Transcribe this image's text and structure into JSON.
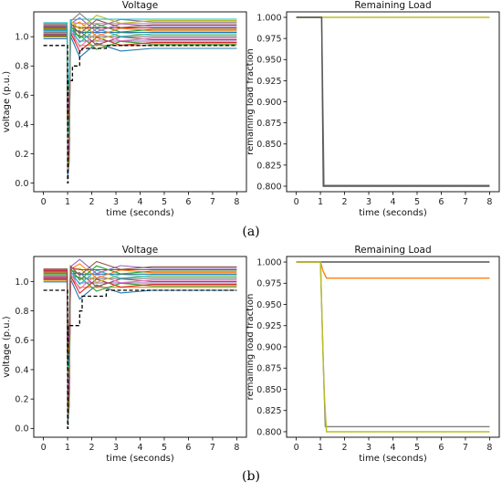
{
  "captions": [
    "(a)",
    "(b)"
  ],
  "chart_data": [
    {
      "panel": "a-voltage",
      "type": "line",
      "title": "Voltage",
      "xlabel": "time (seconds)",
      "ylabel": "voltage (p.u.)",
      "xlim": [
        -0.4,
        8.4
      ],
      "ylim": [
        -0.06,
        1.17
      ],
      "xticks": [
        0,
        1,
        2,
        3,
        4,
        5,
        6,
        7,
        8
      ],
      "yticks": [
        0.0,
        0.2,
        0.4,
        0.6,
        0.8,
        1.0
      ],
      "ytick_labels": [
        "0.0",
        "0.2",
        "0.4",
        "0.6",
        "0.8",
        "1.0"
      ],
      "grid": false,
      "bundle_colors": [
        "#1f77b4",
        "#ff7f0e",
        "#2ca02c",
        "#d62728",
        "#9467bd",
        "#8c564b",
        "#e377c2",
        "#7f7f7f",
        "#bcbd22",
        "#17becf"
      ],
      "bundle_steady": [
        0.92,
        0.94,
        0.95,
        0.96,
        0.97,
        0.98,
        0.99,
        1.0,
        1.01,
        1.02,
        1.03,
        1.04,
        1.05,
        1.06,
        1.07,
        1.08,
        1.09,
        1.1,
        1.11,
        1.12
      ],
      "dip_min": 0.05,
      "dashed_series": {
        "style": "dashed",
        "color": "#000000",
        "x": [
          0,
          1.0,
          1.0,
          1.02,
          1.02,
          1.2,
          1.2,
          1.5,
          1.5,
          1.6,
          1.6,
          2.6,
          2.6,
          8
        ],
        "y": [
          0.94,
          0.94,
          0.0,
          0.0,
          0.7,
          0.7,
          0.8,
          0.8,
          0.9,
          0.9,
          0.92,
          0.92,
          0.94,
          0.94
        ]
      }
    },
    {
      "panel": "a-load",
      "type": "line",
      "title": "Remaining Load",
      "xlabel": "time (seconds)",
      "ylabel": "remaining load fraction",
      "xlim": [
        -0.4,
        8.4
      ],
      "ylim": [
        0.7935,
        1.0065
      ],
      "xticks": [
        0,
        1,
        2,
        3,
        4,
        5,
        6,
        7,
        8
      ],
      "yticks": [
        0.8,
        0.825,
        0.85,
        0.875,
        0.9,
        0.925,
        0.95,
        0.975,
        1.0
      ],
      "ytick_labels": [
        "0.800",
        "0.825",
        "0.850",
        "0.875",
        "0.900",
        "0.925",
        "0.950",
        "0.975",
        "1.000"
      ],
      "grid": false,
      "series": [
        {
          "color": "#7f7f7f",
          "x": [
            0,
            1.05,
            1.15,
            8
          ],
          "y": [
            1.0,
            1.0,
            0.801,
            0.801
          ]
        },
        {
          "color": "#bcbd22",
          "x": [
            0,
            8
          ],
          "y": [
            1.0,
            1.0
          ]
        },
        {
          "color": "#555555",
          "x": [
            0,
            1.05,
            1.12,
            8
          ],
          "y": [
            1.0,
            1.0,
            0.8,
            0.8
          ]
        }
      ]
    },
    {
      "panel": "b-voltage",
      "type": "line",
      "title": "Voltage",
      "xlabel": "time (seconds)",
      "ylabel": "voltage (p.u.)",
      "xlim": [
        -0.4,
        8.4
      ],
      "ylim": [
        -0.06,
        1.17
      ],
      "xticks": [
        0,
        1,
        2,
        3,
        4,
        5,
        6,
        7,
        8
      ],
      "yticks": [
        0.0,
        0.2,
        0.4,
        0.6,
        0.8,
        1.0
      ],
      "ytick_labels": [
        "0.0",
        "0.2",
        "0.4",
        "0.6",
        "0.8",
        "1.0"
      ],
      "grid": false,
      "bundle_colors": [
        "#1f77b4",
        "#ff7f0e",
        "#2ca02c",
        "#d62728",
        "#9467bd",
        "#8c564b",
        "#e377c2",
        "#7f7f7f",
        "#bcbd22",
        "#17becf"
      ],
      "bundle_steady": [
        0.94,
        0.96,
        0.97,
        0.98,
        0.99,
        1.0,
        1.01,
        1.02,
        1.03,
        1.04,
        1.05,
        1.06,
        1.07,
        1.08,
        1.09,
        1.1
      ],
      "dip_min": 0.05,
      "dashed_series": {
        "style": "dashed",
        "color": "#000000",
        "x": [
          0,
          1.0,
          1.0,
          1.02,
          1.02,
          1.5,
          1.5,
          1.6,
          1.6,
          2.6,
          2.6,
          8
        ],
        "y": [
          0.94,
          0.94,
          0.0,
          0.0,
          0.7,
          0.7,
          0.8,
          0.8,
          0.9,
          0.9,
          0.94,
          0.94
        ]
      }
    },
    {
      "panel": "b-load",
      "type": "line",
      "title": "Remaining Load",
      "xlabel": "time (seconds)",
      "ylabel": "remaining load fraction",
      "xlim": [
        -0.4,
        8.4
      ],
      "ylim": [
        0.7935,
        1.0065
      ],
      "xticks": [
        0,
        1,
        2,
        3,
        4,
        5,
        6,
        7,
        8
      ],
      "yticks": [
        0.8,
        0.825,
        0.85,
        0.875,
        0.9,
        0.925,
        0.95,
        0.975,
        1.0
      ],
      "ytick_labels": [
        "0.800",
        "0.825",
        "0.850",
        "0.875",
        "0.900",
        "0.925",
        "0.950",
        "0.975",
        "1.000"
      ],
      "grid": false,
      "series": [
        {
          "color": "#555555",
          "x": [
            0,
            8
          ],
          "y": [
            1.0,
            1.0
          ]
        },
        {
          "color": "#ff7f0e",
          "x": [
            0,
            1.0,
            1.1,
            1.25,
            8
          ],
          "y": [
            1.0,
            1.0,
            0.99,
            0.981,
            0.981
          ]
        },
        {
          "color": "#7f7f7f",
          "x": [
            0,
            1.0,
            1.1,
            1.2,
            8
          ],
          "y": [
            1.0,
            1.0,
            0.9,
            0.806,
            0.806
          ]
        },
        {
          "color": "#bcbd22",
          "x": [
            0,
            1.0,
            1.05,
            1.15,
            1.25,
            8
          ],
          "y": [
            1.0,
            1.0,
            0.95,
            0.85,
            0.8,
            0.8
          ]
        }
      ]
    }
  ]
}
